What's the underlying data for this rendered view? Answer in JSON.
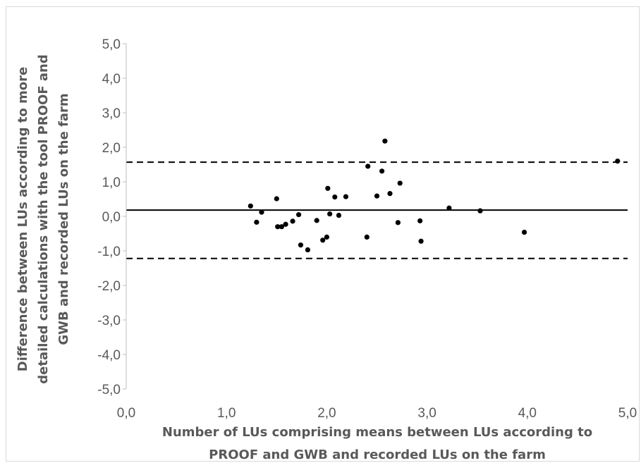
{
  "chart_data": {
    "type": "scatter",
    "title": "",
    "xlabel_lines": [
      "Number of LUs comprising means between LUs according to",
      "PROOF and GWB and recorded LUs on the farm"
    ],
    "ylabel_lines": [
      "Difference between LUs according to more",
      "detailed calculations with the tool PROOF and",
      "GWB and recorded LUs on the farm"
    ],
    "xlim": [
      0,
      5
    ],
    "ylim": [
      -5,
      5
    ],
    "x_ticks": [
      0,
      1,
      2,
      3,
      4,
      5
    ],
    "y_ticks": [
      -5,
      -4,
      -3,
      -2,
      -1,
      0,
      1,
      2,
      3,
      4,
      5
    ],
    "x_tick_labels": [
      "0,0",
      "1,0",
      "2,0",
      "3,0",
      "4,0",
      "5,0"
    ],
    "y_tick_labels": [
      "-5,0",
      "-4,0",
      "-3,0",
      "-2,0",
      "-1,0",
      "0,0",
      "1,0",
      "2,0",
      "3,0",
      "4,0",
      "5,0"
    ],
    "grid": false,
    "marker_color": "#000000",
    "reference_lines": [
      {
        "kind": "mean",
        "y": 0.18,
        "style": "solid"
      },
      {
        "kind": "upper-limit",
        "y": 1.57,
        "style": "dashed"
      },
      {
        "kind": "lower-limit",
        "y": -1.22,
        "style": "dashed"
      }
    ],
    "points": [
      {
        "x": 1.24,
        "y": 0.3
      },
      {
        "x": 1.3,
        "y": -0.17
      },
      {
        "x": 1.35,
        "y": 0.12
      },
      {
        "x": 1.5,
        "y": 0.51
      },
      {
        "x": 1.51,
        "y": -0.3
      },
      {
        "x": 1.55,
        "y": -0.3
      },
      {
        "x": 1.59,
        "y": -0.23
      },
      {
        "x": 1.66,
        "y": -0.14
      },
      {
        "x": 1.72,
        "y": 0.05
      },
      {
        "x": 1.74,
        "y": -0.83
      },
      {
        "x": 1.81,
        "y": -0.97
      },
      {
        "x": 1.9,
        "y": -0.12
      },
      {
        "x": 1.96,
        "y": -0.69
      },
      {
        "x": 2.0,
        "y": -0.6
      },
      {
        "x": 2.01,
        "y": 0.81
      },
      {
        "x": 2.03,
        "y": 0.07
      },
      {
        "x": 2.08,
        "y": 0.56
      },
      {
        "x": 2.12,
        "y": 0.03
      },
      {
        "x": 2.19,
        "y": 0.57
      },
      {
        "x": 2.4,
        "y": -0.6
      },
      {
        "x": 2.41,
        "y": 1.45
      },
      {
        "x": 2.5,
        "y": 0.59
      },
      {
        "x": 2.55,
        "y": 1.31
      },
      {
        "x": 2.58,
        "y": 2.18
      },
      {
        "x": 2.63,
        "y": 0.66
      },
      {
        "x": 2.71,
        "y": -0.18
      },
      {
        "x": 2.73,
        "y": 0.96
      },
      {
        "x": 2.93,
        "y": -0.13
      },
      {
        "x": 2.94,
        "y": -0.72
      },
      {
        "x": 3.22,
        "y": 0.24
      },
      {
        "x": 3.53,
        "y": 0.16
      },
      {
        "x": 3.97,
        "y": -0.46
      },
      {
        "x": 4.9,
        "y": 1.6
      }
    ]
  }
}
